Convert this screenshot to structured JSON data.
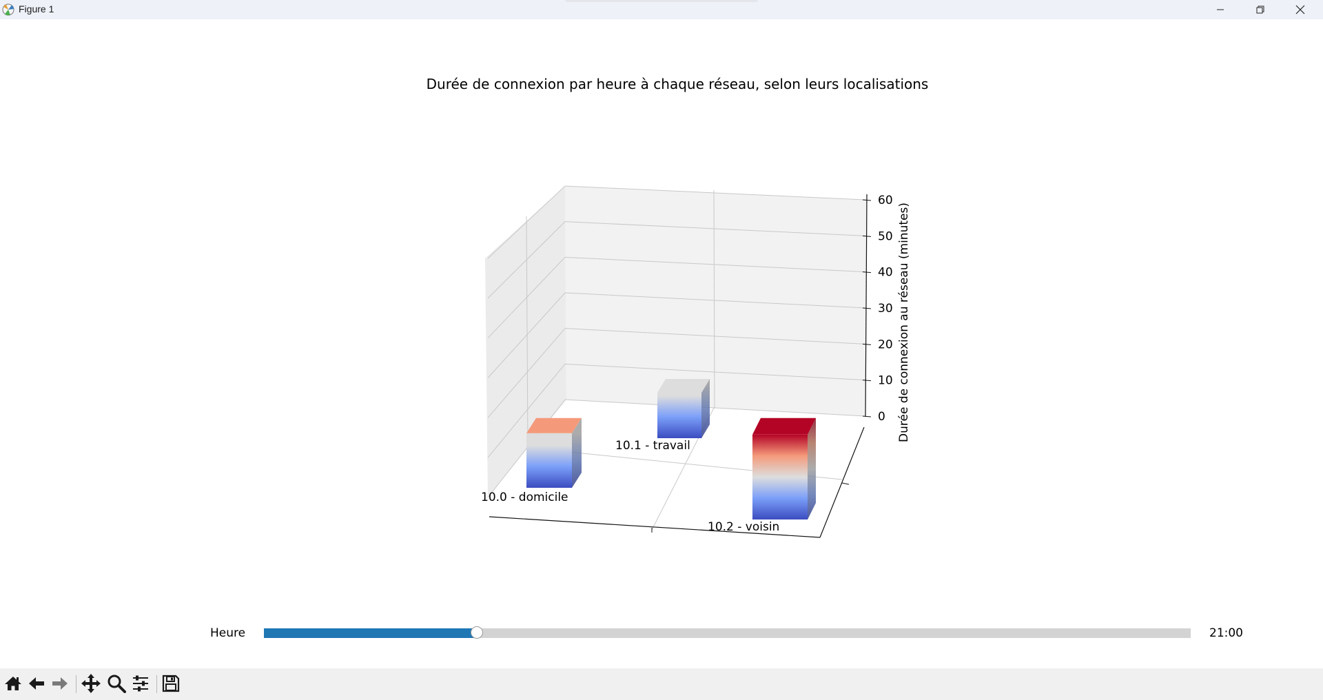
{
  "window": {
    "title": "Figure 1"
  },
  "chart_data": {
    "type": "bar3d",
    "title": "Durée de connexion par heure à chaque réseau, selon leurs localisations",
    "zlabel": "Durée de connexion au réseau (minutes)",
    "z_ticks": [
      "0",
      "10",
      "20",
      "30",
      "40",
      "50",
      "60"
    ],
    "zlim": [
      0,
      60
    ],
    "grid": true,
    "colormap": "coolwarm",
    "categories": [
      "10.0 - domicile",
      "10.1 - travail",
      "10.2 - voisin"
    ],
    "values": [
      18,
      15,
      28
    ]
  },
  "slider": {
    "label": "Heure",
    "value_text": "21:00",
    "fraction": 0.23,
    "fill_color": "#1f77b4"
  },
  "toolbar": {
    "buttons": [
      "home-icon",
      "back-icon",
      "forward-icon",
      "pan-icon",
      "zoom-icon",
      "configure-icon",
      "save-icon"
    ]
  }
}
